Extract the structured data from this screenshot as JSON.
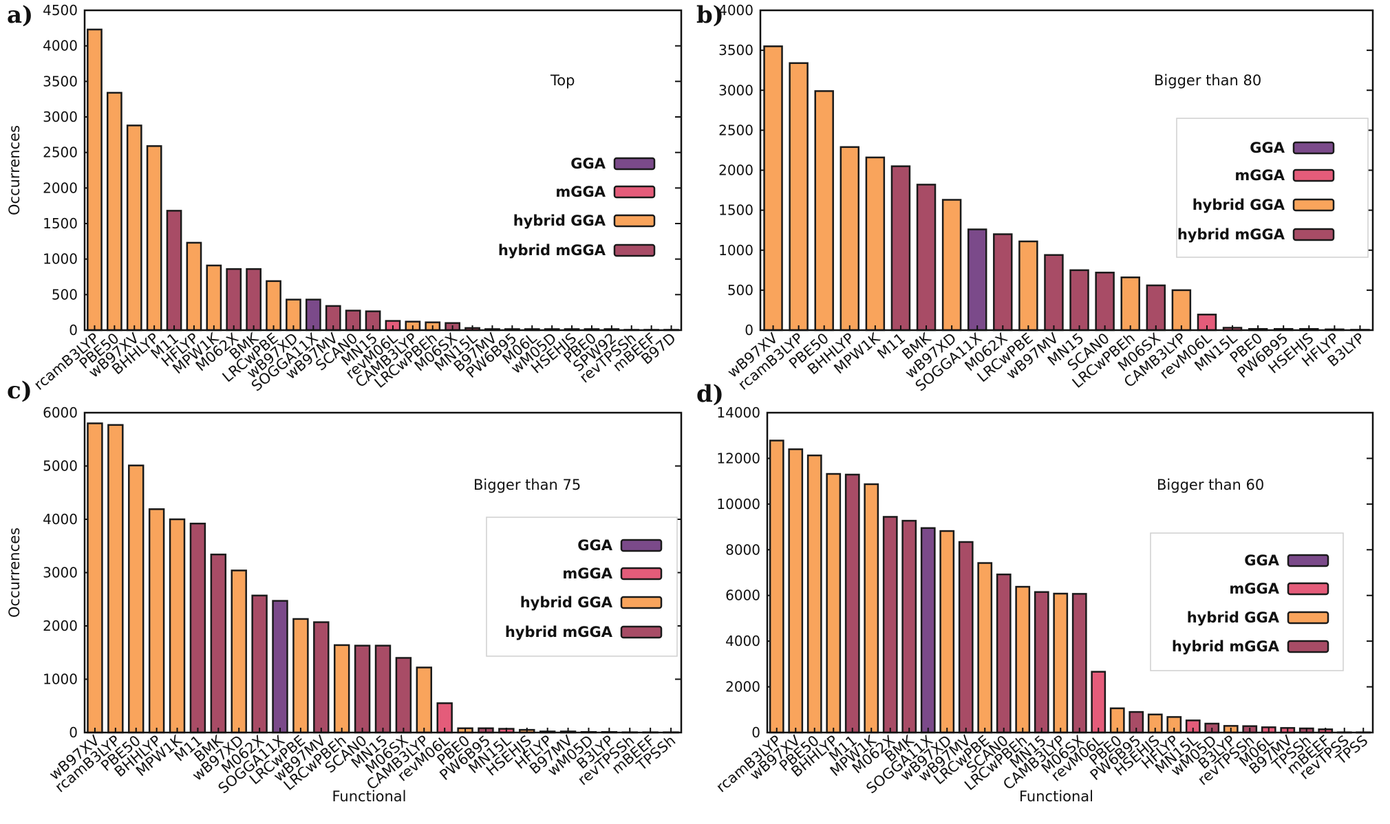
{
  "colors": {
    "GGA": "#7b4a8a",
    "mGGA": "#e45c7a",
    "hybrid GGA": "#f9a45c",
    "hybrid mGGA": "#a84c66"
  },
  "legend_entries": [
    "GGA",
    "mGGA",
    "hybrid GGA",
    "hybrid mGGA"
  ],
  "chart_data": [
    {
      "panel": "a)",
      "type": "bar",
      "title": "Top",
      "xlabel": "",
      "ylabel": "Occurrences",
      "ylim": [
        0,
        4500
      ],
      "yticks": [
        0,
        500,
        1000,
        1500,
        2000,
        2500,
        3000,
        3500,
        4000,
        4500
      ],
      "legend_position": "right",
      "categories": [
        "rcamB3LYP",
        "PBE50",
        "wB97XV",
        "BHHLYP",
        "M11",
        "HFLYP",
        "MPW1K",
        "M062X",
        "BMK",
        "LRCwPBE",
        "wB97XD",
        "SOGGA11X",
        "wB97MV",
        "SCAN0",
        "MN15",
        "revM06L",
        "CAMB3LYP",
        "LRCwPBEh",
        "M06SX",
        "MN15L",
        "B97MV",
        "PW6B95",
        "M06L",
        "wM05D",
        "HSEHJS",
        "PBE0",
        "SPW92",
        "revTPSSh",
        "mBEEF",
        "B97D"
      ],
      "values": [
        4230,
        3340,
        2880,
        2590,
        1680,
        1230,
        910,
        860,
        860,
        690,
        430,
        430,
        340,
        275,
        265,
        130,
        120,
        110,
        100,
        30,
        15,
        15,
        15,
        15,
        15,
        15,
        15,
        5,
        5,
        5
      ],
      "classes": [
        "hybrid GGA",
        "hybrid GGA",
        "hybrid GGA",
        "hybrid GGA",
        "hybrid mGGA",
        "hybrid GGA",
        "hybrid GGA",
        "hybrid mGGA",
        "hybrid mGGA",
        "hybrid GGA",
        "hybrid GGA",
        "GGA",
        "hybrid mGGA",
        "hybrid mGGA",
        "hybrid mGGA",
        "mGGA",
        "hybrid GGA",
        "hybrid GGA",
        "hybrid mGGA",
        "mGGA",
        "mGGA",
        "hybrid mGGA",
        "mGGA",
        "hybrid mGGA",
        "hybrid GGA",
        "hybrid GGA",
        "GGA",
        "hybrid mGGA",
        "mGGA",
        "GGA"
      ]
    },
    {
      "panel": "b)",
      "type": "bar",
      "title": "Bigger than 80",
      "xlabel": "",
      "ylabel": "",
      "ylim": [
        0,
        4000
      ],
      "yticks": [
        0,
        500,
        1000,
        1500,
        2000,
        2500,
        3000,
        3500,
        4000
      ],
      "legend_position": "right",
      "categories": [
        "wB97XV",
        "rcamB3LYP",
        "PBE50",
        "BHHLYP",
        "MPW1K",
        "M11",
        "BMK",
        "wB97XD",
        "SOGGA11X",
        "M062X",
        "LRCwPBE",
        "wB97MV",
        "MN15",
        "SCAN0",
        "LRCwPBEh",
        "M06SX",
        "CAMB3LYP",
        "revM06L",
        "MN15L",
        "PBE0",
        "PW6B95",
        "HSEHJS",
        "HFLYP",
        "B3LYP"
      ],
      "values": [
        3550,
        3340,
        2990,
        2290,
        2160,
        2050,
        1820,
        1630,
        1260,
        1200,
        1110,
        940,
        750,
        720,
        660,
        560,
        500,
        195,
        30,
        15,
        15,
        15,
        10,
        5
      ],
      "classes": [
        "hybrid GGA",
        "hybrid GGA",
        "hybrid GGA",
        "hybrid GGA",
        "hybrid GGA",
        "hybrid mGGA",
        "hybrid mGGA",
        "hybrid GGA",
        "GGA",
        "hybrid mGGA",
        "hybrid GGA",
        "hybrid mGGA",
        "hybrid mGGA",
        "hybrid mGGA",
        "hybrid GGA",
        "hybrid mGGA",
        "hybrid GGA",
        "mGGA",
        "mGGA",
        "hybrid GGA",
        "hybrid mGGA",
        "hybrid GGA",
        "hybrid GGA",
        "hybrid GGA"
      ]
    },
    {
      "panel": "c)",
      "type": "bar",
      "title": "Bigger than 75",
      "xlabel": "Functional",
      "ylabel": "Occurrences",
      "ylim": [
        0,
        6000
      ],
      "yticks": [
        0,
        1000,
        2000,
        3000,
        4000,
        5000,
        6000
      ],
      "legend_position": "right",
      "categories": [
        "wB97XV",
        "rcamB3LYP",
        "PBE50",
        "BHHLYP",
        "MPW1K",
        "M11",
        "BMK",
        "wB97XD",
        "M062X",
        "SOGGA11X",
        "LRCwPBE",
        "wB97MV",
        "LRCwPBEh",
        "SCAN0",
        "MN15",
        "M06SX",
        "CAMB3LYP",
        "revM06L",
        "PBE0",
        "PW6B95",
        "MN15L",
        "HSEHJS",
        "HFLYP",
        "B97MV",
        "wM05D",
        "B3LYP",
        "revTPSSh",
        "mBEEF",
        "TPSSh"
      ],
      "values": [
        5800,
        5770,
        5010,
        4190,
        4000,
        3920,
        3340,
        3040,
        2570,
        2470,
        2130,
        2070,
        1640,
        1630,
        1630,
        1400,
        1220,
        550,
        80,
        80,
        70,
        50,
        20,
        20,
        10,
        10,
        5,
        5,
        5
      ],
      "classes": [
        "hybrid GGA",
        "hybrid GGA",
        "hybrid GGA",
        "hybrid GGA",
        "hybrid GGA",
        "hybrid mGGA",
        "hybrid mGGA",
        "hybrid GGA",
        "hybrid mGGA",
        "GGA",
        "hybrid GGA",
        "hybrid mGGA",
        "hybrid GGA",
        "hybrid mGGA",
        "hybrid mGGA",
        "hybrid mGGA",
        "hybrid GGA",
        "mGGA",
        "hybrid GGA",
        "hybrid mGGA",
        "mGGA",
        "hybrid GGA",
        "hybrid GGA",
        "mGGA",
        "hybrid mGGA",
        "hybrid GGA",
        "hybrid mGGA",
        "mGGA",
        "hybrid mGGA"
      ]
    },
    {
      "panel": "d)",
      "type": "bar",
      "title": "Bigger than 60",
      "xlabel": "Functional",
      "ylabel": "",
      "ylim": [
        0,
        14000
      ],
      "yticks": [
        0,
        2000,
        4000,
        6000,
        8000,
        10000,
        12000,
        14000
      ],
      "legend_position": "right",
      "categories": [
        "rcamB3LYP",
        "wB97XV",
        "PBE50",
        "BHHLYP",
        "M11",
        "MPW1K",
        "M062X",
        "BMK",
        "SOGGA11X",
        "wB97XD",
        "wB97MV",
        "LRCwPBE",
        "SCAN0",
        "LRCwPBEh",
        "MN15",
        "CAMB3LYP",
        "M06SX",
        "revM06L",
        "PBE0",
        "PW6B95",
        "HSEHJS",
        "HFLYP",
        "MN15L",
        "wM05D",
        "B3LYP",
        "revTPSSh",
        "M06L",
        "B97MV",
        "TPSSh",
        "mBEEF",
        "revTPSS",
        "TPSS"
      ],
      "values": [
        12780,
        12400,
        12130,
        11320,
        11290,
        10870,
        9440,
        9270,
        8950,
        8820,
        8340,
        7420,
        6920,
        6380,
        6150,
        6080,
        6070,
        2660,
        1060,
        900,
        790,
        680,
        530,
        390,
        290,
        280,
        230,
        200,
        180,
        140,
        10,
        10
      ],
      "classes": [
        "hybrid GGA",
        "hybrid GGA",
        "hybrid GGA",
        "hybrid GGA",
        "hybrid mGGA",
        "hybrid GGA",
        "hybrid mGGA",
        "hybrid mGGA",
        "GGA",
        "hybrid GGA",
        "hybrid mGGA",
        "hybrid GGA",
        "hybrid mGGA",
        "hybrid GGA",
        "hybrid mGGA",
        "hybrid GGA",
        "hybrid mGGA",
        "mGGA",
        "hybrid GGA",
        "hybrid mGGA",
        "hybrid GGA",
        "hybrid GGA",
        "mGGA",
        "hybrid mGGA",
        "hybrid GGA",
        "hybrid mGGA",
        "mGGA",
        "mGGA",
        "hybrid mGGA",
        "mGGA",
        "mGGA",
        "mGGA"
      ]
    }
  ]
}
